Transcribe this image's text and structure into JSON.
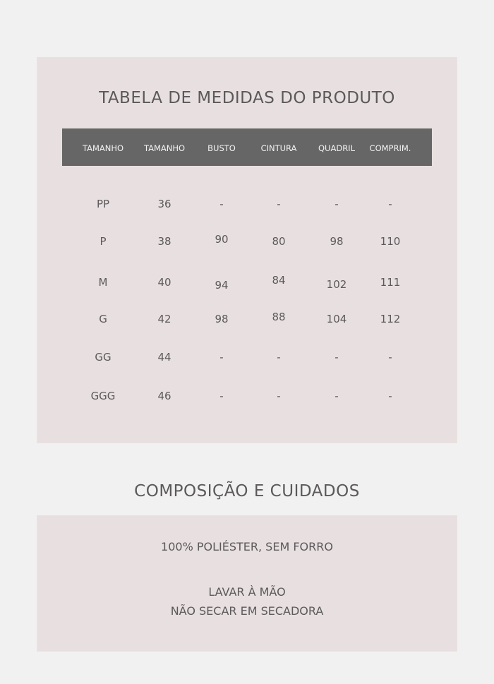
{
  "size_table": {
    "title": "TABELA DE MEDIDAS DO PRODUTO",
    "headers": [
      "TAMANHO",
      "TAMANHO",
      "BUSTO",
      "CINTURA",
      "QUADRIL",
      "COMPRIM."
    ],
    "rows": [
      [
        "PP",
        "36",
        "-",
        "-",
        "-",
        "-"
      ],
      [
        "P",
        "38",
        "90",
        "80",
        "98",
        "110"
      ],
      [
        "M",
        "40",
        "94",
        "84",
        "102",
        "111"
      ],
      [
        "G",
        "42",
        "98",
        "88",
        "104",
        "112"
      ],
      [
        "GG",
        "44",
        "-",
        "-",
        "-",
        "-"
      ],
      [
        "GGG",
        "46",
        "-",
        "-",
        "-",
        "-"
      ]
    ]
  },
  "care": {
    "title": "COMPOSIÇÃO E CUIDADOS",
    "composition": "100% POLIÉSTER, SEM FORRO",
    "instructions": [
      "LAVAR À MÃO",
      "NÃO SECAR EM SECADORA"
    ]
  },
  "colors": {
    "background": "#f2f1f1",
    "panel": "#e8e0e0",
    "header_bar": "#666666",
    "text": "#5b595a"
  }
}
